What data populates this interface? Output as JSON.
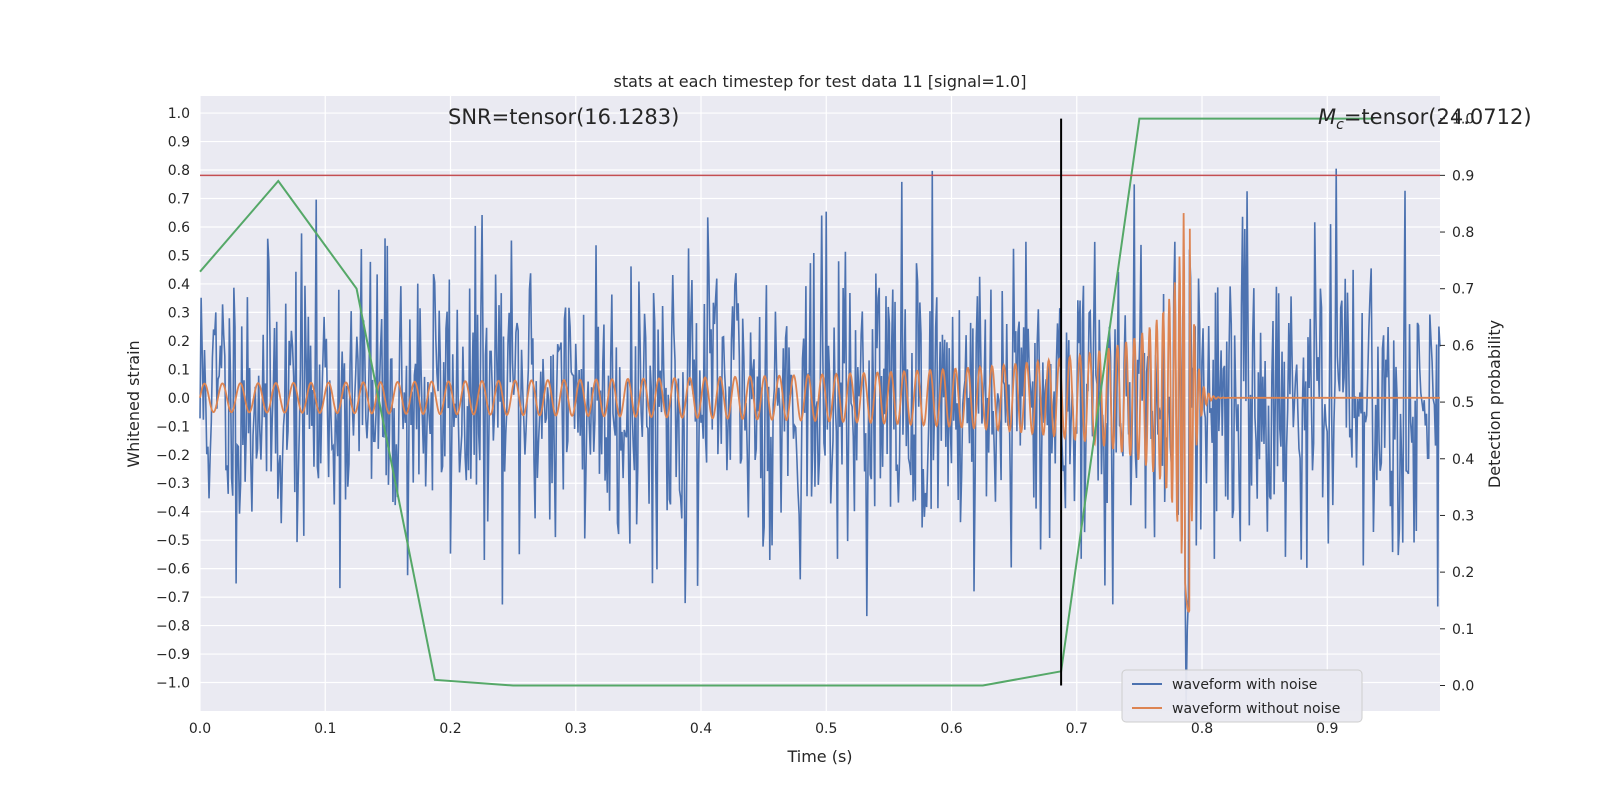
{
  "chart_data": {
    "type": "line",
    "title": "stats at each timestep for test data 11 [signal=1.0]",
    "xlabel": "Time (s)",
    "ylabel": "Whitened strain",
    "y2label": "Detection probability",
    "xlim": [
      0.0,
      0.99
    ],
    "ylim": [
      -1.1,
      1.06
    ],
    "y2lim": [
      -0.045,
      1.04
    ],
    "x_ticks": [
      "0.0",
      "0.1",
      "0.2",
      "0.3",
      "0.4",
      "0.5",
      "0.6",
      "0.7",
      "0.8",
      "0.9"
    ],
    "y_ticks": [
      "1.0",
      "0.9",
      "0.8",
      "0.7",
      "0.6",
      "0.5",
      "0.4",
      "0.3",
      "0.2",
      "0.1",
      "0.0",
      "−0.1",
      "−0.2",
      "−0.3",
      "−0.4",
      "−0.5",
      "−0.6",
      "−0.7",
      "−0.8",
      "−0.9",
      "−1.0"
    ],
    "y2_ticks": [
      "1.0",
      "0.9",
      "0.8",
      "0.7",
      "0.6",
      "0.5",
      "0.4",
      "0.3",
      "0.2",
      "0.1",
      "0.0"
    ],
    "grid": true,
    "legend_position": "lower-right",
    "annotations": {
      "snr": "SNR=tensor(16.1283)",
      "mc_symbol": "M",
      "mc_subscript": "c",
      "mc_value": "=tensor(24.0712)"
    },
    "threshold_line": {
      "axis": "y2",
      "value": 0.9,
      "color": "#c44e52"
    },
    "vertical_marker": {
      "x": 0.6875,
      "y2_range": [
        0.0,
        1.0
      ],
      "color": "#000000"
    },
    "series": [
      {
        "name": "waveform with noise",
        "axis": "y",
        "color": "#4c72b0",
        "kind": "noise",
        "seed": 11,
        "samples": 1100,
        "std": 0.26,
        "x_range": [
          0.0,
          0.99
        ]
      },
      {
        "name": "waveform without noise",
        "axis": "y",
        "color": "#dd8452",
        "kind": "chirp",
        "merger_time": 0.79,
        "x_range": [
          0.0,
          0.99
        ]
      },
      {
        "name": "",
        "axis": "y2",
        "color": "#55a868",
        "x": [
          0.0,
          0.0625,
          0.125,
          0.1875,
          0.25,
          0.3125,
          0.375,
          0.4375,
          0.5,
          0.5625,
          0.625,
          0.6875,
          0.75,
          0.8125,
          0.875,
          0.9375
        ],
        "values": [
          0.73,
          0.89,
          0.7,
          0.01,
          0.0,
          0.0,
          0.0,
          0.0,
          0.0,
          0.0,
          0.0,
          0.025,
          1.0,
          1.0,
          1.0,
          1.0
        ]
      }
    ],
    "colors": {
      "plot_background": "#eaeaf2",
      "grid": "#ffffff",
      "text": "#262626"
    }
  }
}
